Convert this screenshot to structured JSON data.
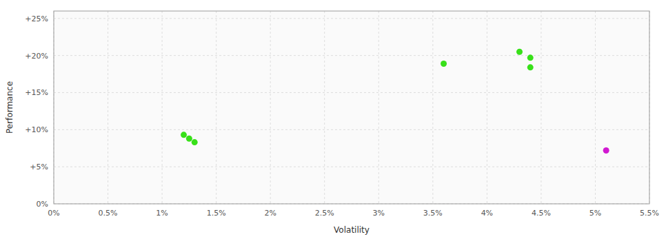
{
  "chart_data": {
    "type": "scatter",
    "xlabel": "Volatility",
    "ylabel": "Performance",
    "xlim": [
      0.0,
      0.055
    ],
    "ylim": [
      0.0,
      0.26
    ],
    "xticks": [
      {
        "value": 0.0,
        "label": "0%"
      },
      {
        "value": 0.005,
        "label": "0.5%"
      },
      {
        "value": 0.01,
        "label": "1%"
      },
      {
        "value": 0.015,
        "label": "1.5%"
      },
      {
        "value": 0.02,
        "label": "2%"
      },
      {
        "value": 0.025,
        "label": "2.5%"
      },
      {
        "value": 0.03,
        "label": "3%"
      },
      {
        "value": 0.035,
        "label": "3.5%"
      },
      {
        "value": 0.04,
        "label": "4%"
      },
      {
        "value": 0.045,
        "label": "4.5%"
      },
      {
        "value": 0.05,
        "label": "5%"
      },
      {
        "value": 0.055,
        "label": "5.5%"
      }
    ],
    "yticks": [
      {
        "value": 0.0,
        "label": "0%"
      },
      {
        "value": 0.05,
        "label": "+5%"
      },
      {
        "value": 0.1,
        "label": "+10%"
      },
      {
        "value": 0.15,
        "label": "+15%"
      },
      {
        "value": 0.2,
        "label": "+20%"
      },
      {
        "value": 0.25,
        "label": "+25%"
      }
    ],
    "grid": true,
    "series": [
      {
        "color": "#22dd00",
        "marker": "circle",
        "x": [
          0.012,
          0.0125,
          0.013,
          0.036,
          0.043,
          0.044,
          0.044
        ],
        "values": [
          0.093,
          0.088,
          0.083,
          0.189,
          0.205,
          0.197,
          0.184
        ]
      },
      {
        "color": "#cc00cc",
        "marker": "circle",
        "x": [
          0.051
        ],
        "values": [
          0.072
        ]
      }
    ]
  }
}
